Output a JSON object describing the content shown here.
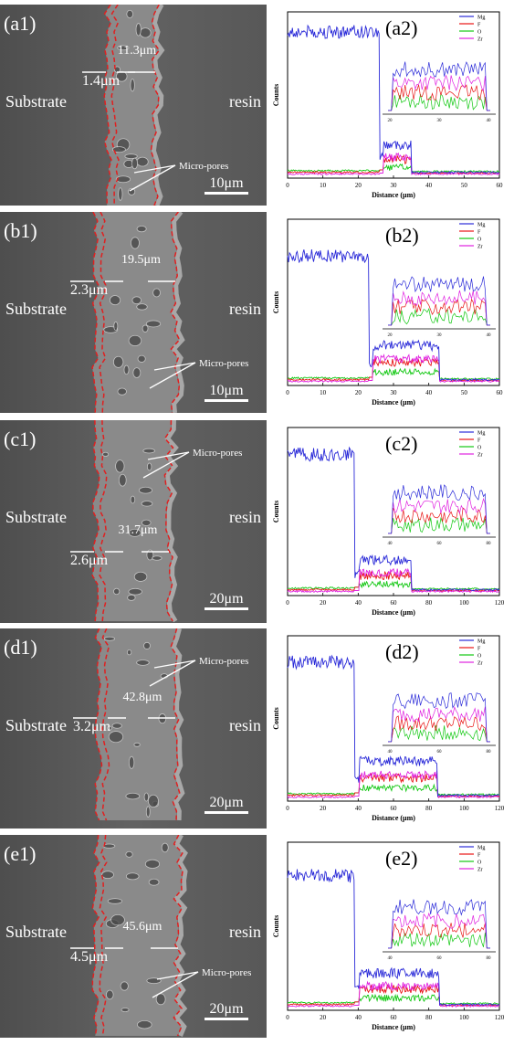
{
  "panels": [
    {
      "sem": {
        "label": "(a1)",
        "thickness": "11.3μm",
        "inner": "1.4μm",
        "substrate": "Substrate",
        "resin": "resin",
        "pores": "Micro-pores",
        "scale": "10μm"
      },
      "plot": {
        "label": "(a2)",
        "xlabel": "Distance (μm)",
        "ylabel": "Counts",
        "xticks": [
          "0",
          "10",
          "20",
          "30",
          "40",
          "50",
          "60"
        ],
        "xmax": 60,
        "inset_ticks": [
          "20",
          "30",
          "40"
        ],
        "legend": [
          "Mg",
          "F",
          "O",
          "Zr"
        ],
        "mg_drop": 26,
        "layer_end": 35,
        "plateau": 0.88,
        "layer_level": 0.16
      }
    },
    {
      "sem": {
        "label": "(b1)",
        "thickness": "19.5μm",
        "inner": "2.3μm",
        "substrate": "Substrate",
        "resin": "resin",
        "pores": "Micro-pores",
        "scale": "10μm"
      },
      "plot": {
        "label": "(b2)",
        "xlabel": "Distance (μm)",
        "ylabel": "Counts",
        "xticks": [
          "0",
          "10",
          "20",
          "30",
          "40",
          "50",
          "60"
        ],
        "xmax": 60,
        "inset_ticks": [
          "20",
          "30",
          "40"
        ],
        "legend": [
          "Mg",
          "F",
          "O",
          "Zr"
        ],
        "mg_drop": 23,
        "layer_end": 43,
        "plateau": 0.78,
        "layer_level": 0.2
      }
    },
    {
      "sem": {
        "label": "(c1)",
        "thickness": "31.7μm",
        "inner": "2.6μm",
        "substrate": "Substrate",
        "resin": "resin",
        "pores": "Micro-pores",
        "scale": "20μm"
      },
      "plot": {
        "label": "(c2)",
        "xlabel": "Distance (μm)",
        "ylabel": "Counts",
        "xticks": [
          "0",
          "20",
          "40",
          "60",
          "80",
          "100",
          "120"
        ],
        "xmax": 120,
        "inset_ticks": [
          "40",
          "60",
          "80"
        ],
        "legend": [
          "Mg",
          "F",
          "O",
          "Zr"
        ],
        "mg_drop": 38,
        "layer_end": 70,
        "plateau": 0.84,
        "layer_level": 0.17
      }
    },
    {
      "sem": {
        "label": "(d1)",
        "thickness": "42.8μm",
        "inner": "3.2μm",
        "substrate": "Substrate",
        "resin": "resin",
        "pores": "Micro-pores",
        "scale": "20μm"
      },
      "plot": {
        "label": "(d2)",
        "xlabel": "Distance (μm)",
        "ylabel": "Counts",
        "xticks": [
          "0",
          "20",
          "40",
          "60",
          "80",
          "100",
          "120"
        ],
        "xmax": 120,
        "inset_ticks": [
          "40",
          "60",
          "80"
        ],
        "legend": [
          "Mg",
          "F",
          "O",
          "Zr"
        ],
        "mg_drop": 38,
        "layer_end": 85,
        "plateau": 0.84,
        "layer_level": 0.2
      }
    },
    {
      "sem": {
        "label": "(e1)",
        "thickness": "45.6μm",
        "inner": "4.5μm",
        "substrate": "Substrate",
        "resin": "resin",
        "pores": "Micro-pores",
        "scale": "20μm"
      },
      "plot": {
        "label": "(e2)",
        "xlabel": "Distance (μm)",
        "ylabel": "Counts",
        "xticks": [
          "0",
          "20",
          "40",
          "60",
          "80",
          "100",
          "120"
        ],
        "xmax": 120,
        "inset_ticks": [
          "40",
          "60",
          "80"
        ],
        "legend": [
          "Mg",
          "F",
          "O",
          "Zr"
        ],
        "mg_drop": 38,
        "layer_end": 86,
        "plateau": 0.8,
        "layer_level": 0.18
      }
    }
  ],
  "colors": {
    "Mg": "#2a2ad8",
    "F": "#e81414",
    "O": "#12c812",
    "Zr": "#e020e0",
    "sem_bg": "#5a5a5a",
    "coating": "#8a8a8a",
    "dash": "#e02020"
  }
}
